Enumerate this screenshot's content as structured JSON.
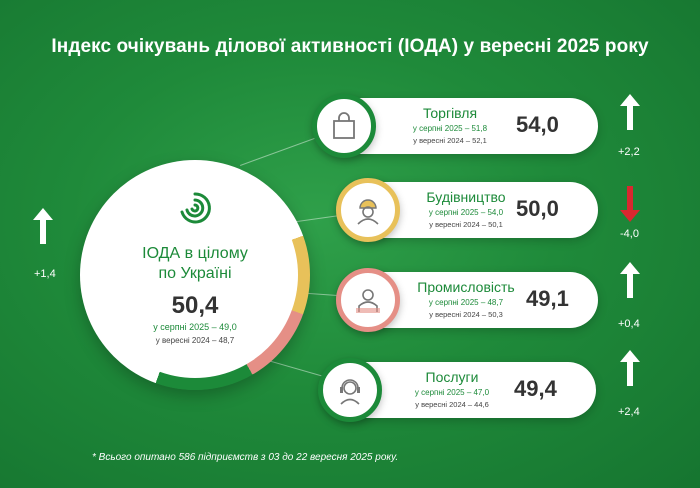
{
  "title": "Індекс очікувань ділової активності (ІОДА) у вересні 2025 року",
  "colors": {
    "brand_green": "#1c8a39",
    "up_arrow": "#ffffff",
    "down_arrow": "#d9282f"
  },
  "overall": {
    "title_line1": "ІОДА в цілому",
    "title_line2": "по Україні",
    "value": "50,4",
    "prev_month": "у серпні 2025 – 49,0",
    "prev_year": "у вересні 2024 – 48,7",
    "delta": "+1,4",
    "trend": "up"
  },
  "sectors": [
    {
      "name": "Торгівля",
      "icon": "shopping-bag-icon",
      "value": "54,0",
      "prev_month": "у серпні 2025 – 51,8",
      "prev_year": "у вересні 2024 – 52,1",
      "delta": "+2,2",
      "trend": "up"
    },
    {
      "name": "Будівництво",
      "icon": "construction-worker-icon",
      "value": "50,0",
      "prev_month": "у серпні 2025 – 54,0",
      "prev_year": "у вересні 2024 – 50,1",
      "delta": "-4,0",
      "trend": "down"
    },
    {
      "name": "Промисловість",
      "icon": "factory-worker-icon",
      "value": "49,1",
      "prev_month": "у серпні 2025 – 48,7",
      "prev_year": "у вересні 2024 – 50,3",
      "delta": "+0,4",
      "trend": "up"
    },
    {
      "name": "Послуги",
      "icon": "headset-operator-icon",
      "value": "49,4",
      "prev_month": "у серпні 2025 – 47,0",
      "prev_year": "у вересні 2024 – 44,6",
      "delta": "+2,4",
      "trend": "up"
    }
  ],
  "footnote": "* Всього опитано 586 підприємств з 03 до 22 вересня 2025 року."
}
